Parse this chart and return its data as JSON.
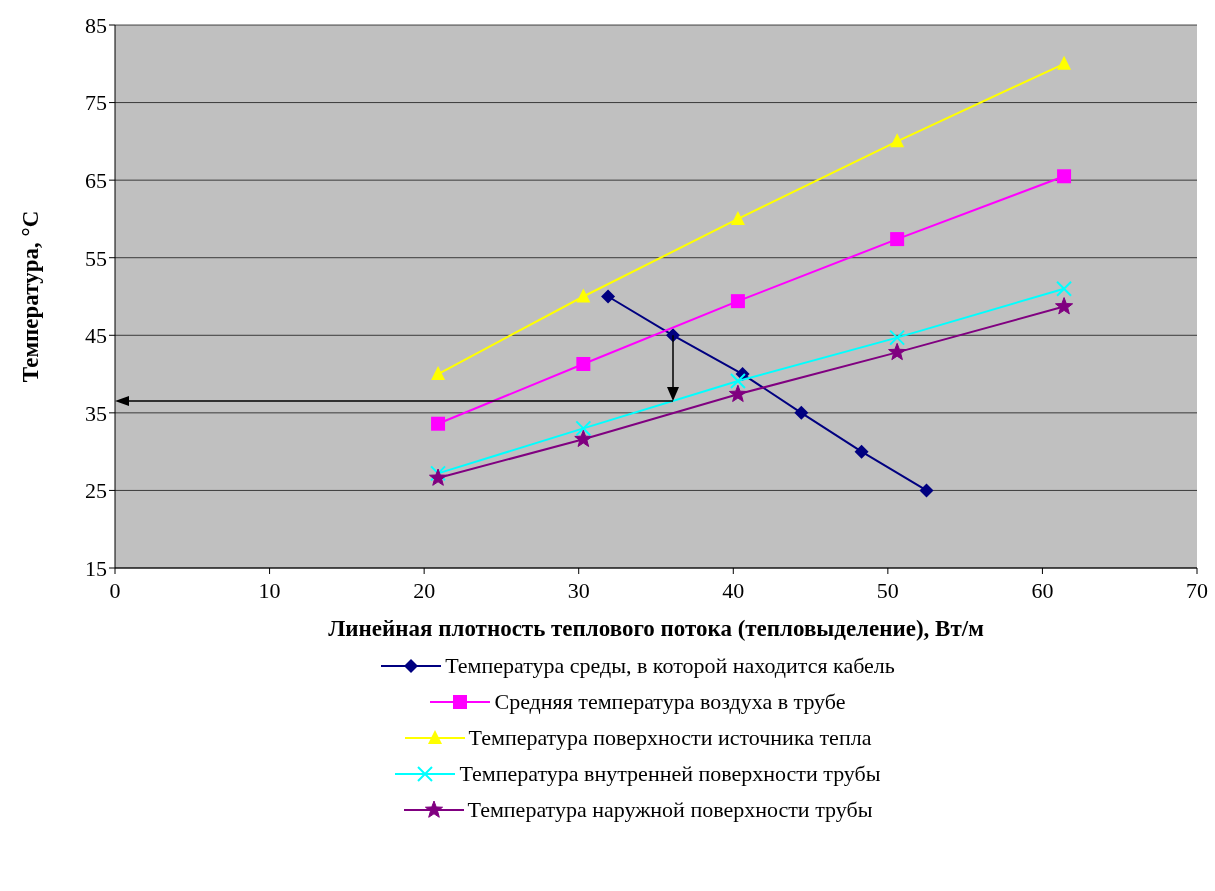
{
  "chart_data": {
    "type": "line",
    "xlabel": "Линейная плотность теплового потока (тепловыделение), Вт/м",
    "ylabel": "Температура,  °C",
    "xlim": [
      0,
      70
    ],
    "xticks": [
      0,
      10,
      20,
      30,
      40,
      50,
      60,
      70
    ],
    "ylim": [
      15,
      85
    ],
    "yticks": [
      15,
      25,
      35,
      45,
      55,
      65,
      75,
      85
    ],
    "grid": "y",
    "legend": "bottom",
    "series": [
      {
        "name": "Температура среды, в которой находится кабель",
        "color": "#000080",
        "marker": "diamond",
        "x": [
          31.9,
          36.1,
          40.6,
          44.4,
          48.3,
          52.5
        ],
        "values": [
          50,
          45,
          40,
          35,
          30,
          25
        ]
      },
      {
        "name": "Средняя температура воздуха в трубе",
        "color": "#ff00ff",
        "marker": "square",
        "x": [
          20.9,
          30.3,
          40.3,
          50.6,
          61.4
        ],
        "values": [
          33.6,
          41.3,
          49.4,
          57.4,
          65.5
        ]
      },
      {
        "name": "Температура поверхности источника тепла",
        "color": "#ffff00",
        "marker": "triangle",
        "x": [
          20.9,
          30.3,
          40.3,
          50.6,
          61.4
        ],
        "values": [
          40,
          50,
          60,
          70,
          80
        ]
      },
      {
        "name": "Температура внутренней поверхности трубы",
        "color": "#00ffff",
        "marker": "cross",
        "x": [
          20.9,
          30.3,
          40.3,
          50.6,
          61.4
        ],
        "values": [
          27.2,
          33,
          39.1,
          44.7,
          51
        ]
      },
      {
        "name": "Температура наружной поверхности трубы",
        "color": "#800080",
        "marker": "star",
        "x": [
          20.9,
          30.3,
          40.3,
          50.6,
          61.4
        ],
        "values": [
          26.6,
          31.6,
          37.4,
          42.8,
          48.7
        ]
      }
    ]
  }
}
